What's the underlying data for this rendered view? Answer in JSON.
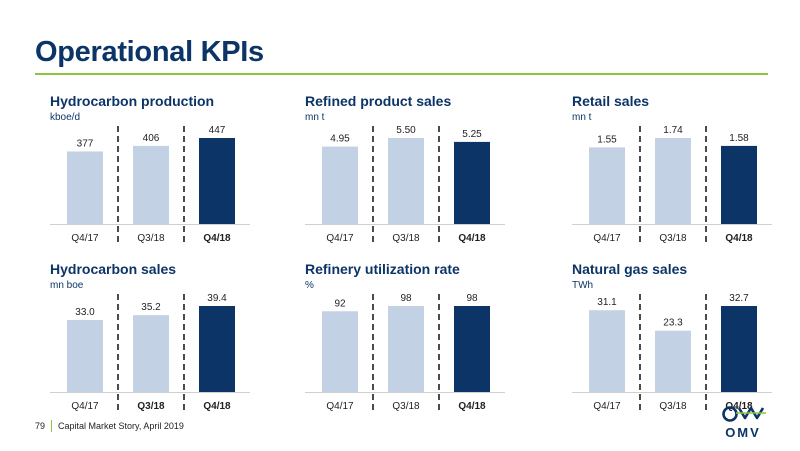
{
  "page": {
    "title": "Operational KPIs",
    "footer_page": "79",
    "footer_text": "Capital Market Story, April 2019",
    "logo_text": "OMV"
  },
  "colors": {
    "title": "#0c3466",
    "rule": "#8cc63f",
    "bar_light": "#c3d1e4",
    "bar_dark": "#0c3466"
  },
  "chart_data": [
    {
      "type": "bar",
      "title": "Hydrocarbon production",
      "unit": "kboe/d",
      "categories": [
        "Q4/17",
        "Q3/18",
        "Q4/18"
      ],
      "bold_categories": [
        "Q4/18"
      ],
      "values": [
        377,
        406,
        447
      ],
      "labels": [
        "377",
        "406",
        "447"
      ]
    },
    {
      "type": "bar",
      "title": "Refined product sales",
      "unit": "mn t",
      "categories": [
        "Q4/17",
        "Q3/18",
        "Q4/18"
      ],
      "bold_categories": [
        "Q4/18"
      ],
      "values": [
        4.95,
        5.5,
        5.25
      ],
      "labels": [
        "4.95",
        "5.50",
        "5.25"
      ]
    },
    {
      "type": "bar",
      "title": "Retail sales",
      "unit": "mn t",
      "categories": [
        "Q4/17",
        "Q3/18",
        "Q4/18"
      ],
      "bold_categories": [
        "Q4/18"
      ],
      "values": [
        1.55,
        1.74,
        1.58
      ],
      "labels": [
        "1.55",
        "1.74",
        "1.58"
      ]
    },
    {
      "type": "bar",
      "title": "Hydrocarbon sales",
      "unit": "mn boe",
      "categories": [
        "Q4/17",
        "Q3/18",
        "Q4/18"
      ],
      "bold_categories": [
        "Q3/18",
        "Q4/18"
      ],
      "values": [
        33.0,
        35.2,
        39.4
      ],
      "labels": [
        "33.0",
        "35.2",
        "39.4"
      ]
    },
    {
      "type": "bar",
      "title": "Refinery utilization rate",
      "unit": "%",
      "categories": [
        "Q4/17",
        "Q3/18",
        "Q4/18"
      ],
      "bold_categories": [
        "Q4/18"
      ],
      "values": [
        92,
        98,
        98
      ],
      "labels": [
        "92",
        "98",
        "98"
      ]
    },
    {
      "type": "bar",
      "title": "Natural gas sales",
      "unit": "TWh",
      "categories": [
        "Q4/17",
        "Q3/18",
        "Q4/18"
      ],
      "bold_categories": [
        "Q4/18"
      ],
      "values": [
        31.1,
        23.3,
        32.7
      ],
      "labels": [
        "31.1",
        "23.3",
        "32.7"
      ]
    }
  ]
}
